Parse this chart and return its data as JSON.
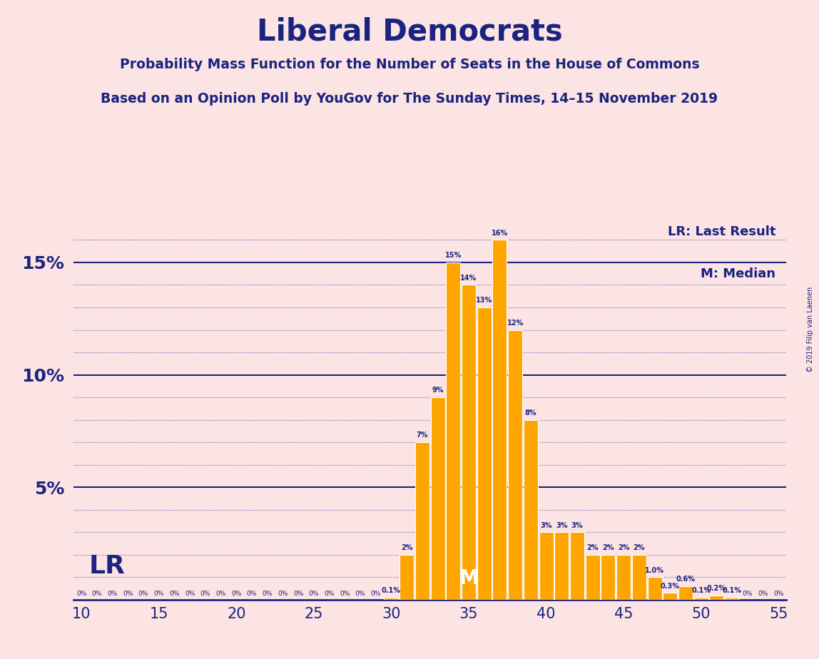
{
  "title": "Liberal Democrats",
  "subtitle1": "Probability Mass Function for the Number of Seats in the House of Commons",
  "subtitle2": "Based on an Opinion Poll by YouGov for The Sunday Times, 14–15 November 2019",
  "copyright": "© 2019 Filip van Laenen",
  "lr_label": "LR: Last Result",
  "m_label": "M: Median",
  "lr_seat": 12,
  "median_seat": 35,
  "x_min": 10,
  "x_max": 55,
  "y_max": 17,
  "background_color": "#fce4e4",
  "bar_color": "#FFA500",
  "text_color": "#1a237e",
  "seats": [
    10,
    11,
    12,
    13,
    14,
    15,
    16,
    17,
    18,
    19,
    20,
    21,
    22,
    23,
    24,
    25,
    26,
    27,
    28,
    29,
    30,
    31,
    32,
    33,
    34,
    35,
    36,
    37,
    38,
    39,
    40,
    41,
    42,
    43,
    44,
    45,
    46,
    47,
    48,
    49,
    50,
    51,
    52,
    53,
    54,
    55
  ],
  "probabilities": [
    0,
    0,
    0,
    0,
    0,
    0,
    0,
    0,
    0,
    0,
    0,
    0,
    0,
    0,
    0,
    0,
    0,
    0,
    0,
    0,
    0.1,
    2,
    7,
    9,
    15,
    14,
    13,
    16,
    12,
    8,
    3,
    3,
    3,
    2,
    2,
    2,
    2,
    1.0,
    0.3,
    0.6,
    0.1,
    0.2,
    0.1,
    0,
    0,
    0
  ],
  "bar_labels": [
    "0%",
    "0%",
    "0%",
    "0%",
    "0%",
    "0%",
    "0%",
    "0%",
    "0%",
    "0%",
    "0%",
    "0%",
    "0%",
    "0%",
    "0%",
    "0%",
    "0%",
    "0%",
    "0%",
    "0%",
    "0.1%",
    "2%",
    "7%",
    "9%",
    "15%",
    "14%",
    "13%",
    "16%",
    "12%",
    "8%",
    "3%",
    "3%",
    "3%",
    "2%",
    "2%",
    "2%",
    "2%",
    "1.0%",
    "0.3%",
    "0.6%",
    "0.1%",
    "0.2%",
    "0.1%",
    "0%",
    "0%",
    "0%"
  ]
}
